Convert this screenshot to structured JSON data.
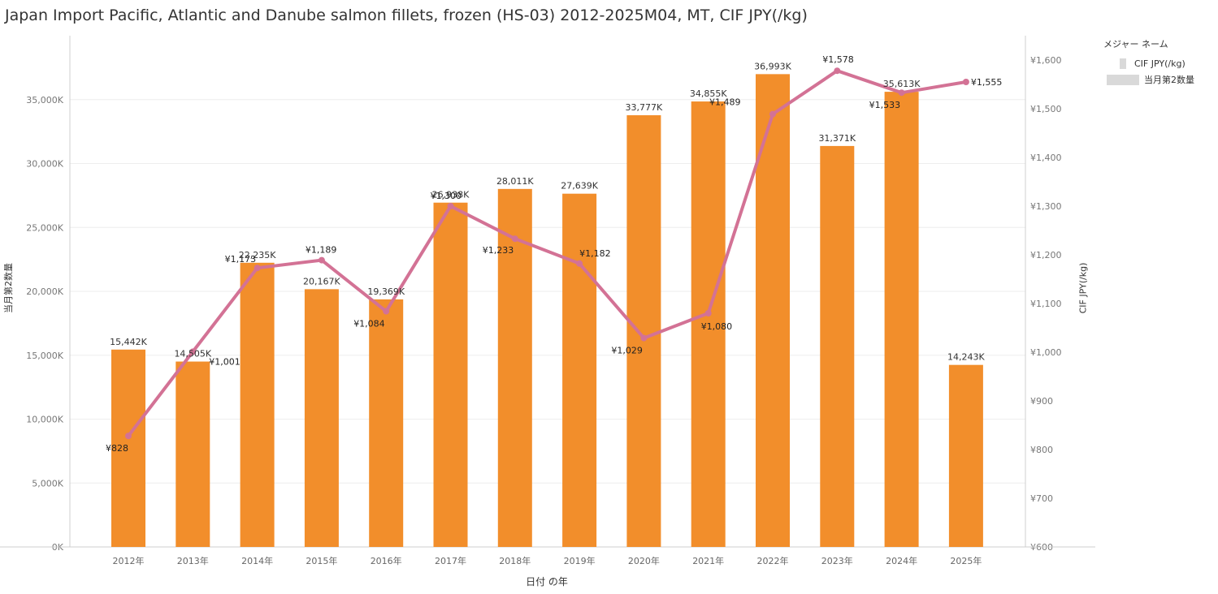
{
  "chart_data": {
    "type": "bar",
    "title": "Japan Import Pacific, Atlantic and Danube salmon fillets, frozen (HS-03) 2012-2025M04, MT, CIF JPY(/kg)",
    "xlabel": "日付 の年",
    "ylabel": "当月第2数量",
    "y2label": "CIF JPY(/kg)",
    "categories": [
      "2012年",
      "2013年",
      "2014年",
      "2015年",
      "2016年",
      "2017年",
      "2018年",
      "2019年",
      "2020年",
      "2021年",
      "2022年",
      "2023年",
      "2024年",
      "2025年"
    ],
    "ylim": [
      0,
      40000
    ],
    "y2lim": [
      600,
      1650
    ],
    "yticks": [
      0,
      5000,
      10000,
      15000,
      20000,
      25000,
      30000,
      35000
    ],
    "ytick_labels": [
      "0K",
      "5,000K",
      "10,000K",
      "15,000K",
      "20,000K",
      "25,000K",
      "30,000K",
      "35,000K"
    ],
    "y2ticks": [
      600,
      700,
      800,
      900,
      1000,
      1100,
      1200,
      1300,
      1400,
      1500,
      1600
    ],
    "y2tick_labels": [
      "¥600",
      "¥700",
      "¥800",
      "¥900",
      "¥1,000",
      "¥1,100",
      "¥1,200",
      "¥1,300",
      "¥1,400",
      "¥1,500",
      "¥1,600"
    ],
    "grid": true,
    "legend_position": "top-right",
    "legend_title": "メジャー ネーム",
    "series": [
      {
        "name": "当月第2数量",
        "type": "bar",
        "axis": "left",
        "color": "#f28e2b",
        "values": [
          15442,
          14505,
          22235,
          20167,
          19369,
          26938,
          28011,
          27639,
          33777,
          34855,
          36993,
          31371,
          35613,
          14243
        ],
        "labels": [
          "15,442K",
          "14,505K",
          "22,235K",
          "20,167K",
          "19,369K",
          "26,938K",
          "28,011K",
          "27,639K",
          "33,777K",
          "34,855K",
          "36,993K",
          "31,371K",
          "35,613K",
          "14,243K"
        ]
      },
      {
        "name": "CIF JPY(/kg)",
        "type": "line",
        "axis": "right",
        "color": "#d37295",
        "values": [
          828,
          1001,
          1173,
          1189,
          1084,
          1300,
          1233,
          1182,
          1029,
          1080,
          1489,
          1578,
          1533,
          1555
        ],
        "labels": [
          "¥828",
          "¥1,001",
          "¥1,173",
          "¥1,189",
          "¥1,084",
          "¥1,300",
          "¥1,233",
          "¥1,182",
          "¥1,029",
          "¥1,080",
          "¥1,489",
          "¥1,578",
          "¥1,533",
          "¥1,555"
        ]
      }
    ]
  }
}
